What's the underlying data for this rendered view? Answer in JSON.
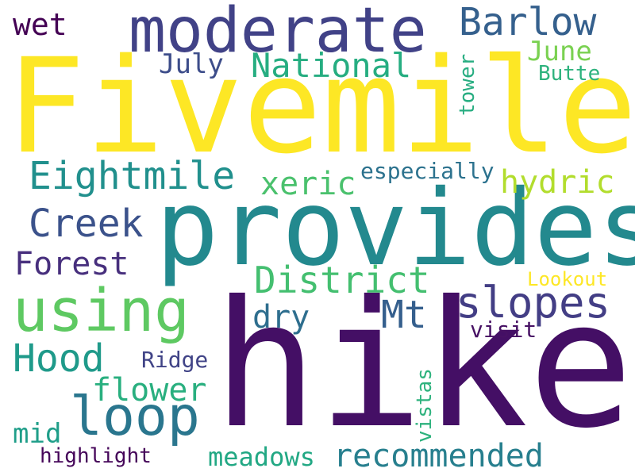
{
  "words": [
    {
      "id": "fivemile",
      "text": "Fivemile",
      "color": "#fde725"
    },
    {
      "id": "hike",
      "text": "hike",
      "color": "#440f65"
    },
    {
      "id": "provides",
      "text": "provides",
      "color": "#23898e"
    },
    {
      "id": "moderate",
      "text": "moderate",
      "color": "#414287"
    },
    {
      "id": "using",
      "text": "using",
      "color": "#5ec962"
    },
    {
      "id": "loop",
      "text": "loop",
      "color": "#2a768e"
    },
    {
      "id": "slopes",
      "text": "slopes",
      "color": "#433e85"
    },
    {
      "id": "barlow",
      "text": "Barlow",
      "color": "#35608d"
    },
    {
      "id": "eightmile",
      "text": "Eightmile",
      "color": "#21908d"
    },
    {
      "id": "district",
      "text": "District",
      "color": "#44bf70"
    },
    {
      "id": "national",
      "text": "National",
      "color": "#26ad81"
    },
    {
      "id": "creek",
      "text": "Creek",
      "color": "#3b528b"
    },
    {
      "id": "hood",
      "text": "Hood",
      "color": "#1f9a8a"
    },
    {
      "id": "recommended",
      "text": "recommended",
      "color": "#277f8e"
    },
    {
      "id": "mt",
      "text": "Mt",
      "color": "#355f8d"
    },
    {
      "id": "forest",
      "text": "Forest",
      "color": "#472f7d"
    },
    {
      "id": "hydric",
      "text": "hydric",
      "color": "#b2dd2d"
    },
    {
      "id": "xeric",
      "text": "xeric",
      "color": "#4ac16d"
    },
    {
      "id": "flower",
      "text": "flower",
      "color": "#29af7f"
    },
    {
      "id": "meadows",
      "text": "meadows",
      "color": "#22a884"
    },
    {
      "id": "july",
      "text": "July",
      "color": "#3d4d8a"
    },
    {
      "id": "june",
      "text": "June",
      "color": "#7ad151"
    },
    {
      "id": "dry",
      "text": "dry",
      "color": "#2e6e8e"
    },
    {
      "id": "wet",
      "text": "wet",
      "color": "#440154"
    },
    {
      "id": "especially",
      "text": "especially",
      "color": "#2c728e"
    },
    {
      "id": "mid",
      "text": "mid",
      "color": "#1f9e89"
    },
    {
      "id": "highlight",
      "text": "highlight",
      "color": "#450559"
    },
    {
      "id": "visit",
      "text": "visit",
      "color": "#471164"
    },
    {
      "id": "ridge",
      "text": "Ridge",
      "color": "#414487"
    },
    {
      "id": "lookout",
      "text": "Lookout",
      "color": "#fde725"
    },
    {
      "id": "butte",
      "text": "Butte",
      "color": "#2db27d"
    },
    {
      "id": "tower",
      "text": "tower",
      "color": "#27ad81"
    },
    {
      "id": "vistas",
      "text": "vistas",
      "color": "#2db27d"
    }
  ]
}
